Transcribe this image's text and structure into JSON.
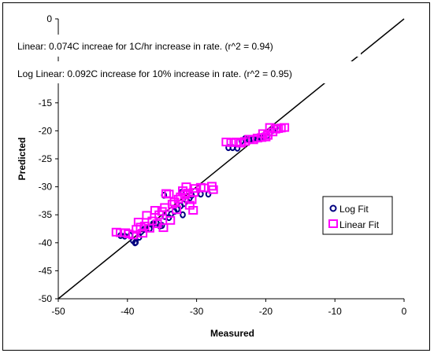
{
  "chart_data": {
    "type": "scatter",
    "xlabel": "Measured",
    "ylabel": "Predicted",
    "xlim": [
      -50,
      0
    ],
    "ylim": [
      -50,
      0
    ],
    "xticks": [
      -50,
      -40,
      -30,
      -20,
      -10,
      0
    ],
    "yticks": [
      0,
      -5,
      -10,
      -15,
      -20,
      -25,
      -30,
      -35,
      -40,
      -45,
      -50
    ],
    "grid": false,
    "legend_position": "right",
    "annotations": [
      "Linear:  0.074C increae for 1C/hr increase in rate. (r^2 = 0.94)",
      "Log Linear:  0.092C increase for 10% increase in rate. (r^2 = 0.95)"
    ],
    "reference_line": {
      "x": [
        -50,
        0
      ],
      "y": [
        -50,
        0
      ],
      "color": "#000000"
    },
    "series": [
      {
        "name": "Log Fit",
        "marker": "circle",
        "color": "#000080",
        "points": [
          [
            -41.0,
            -38.7
          ],
          [
            -40.4,
            -38.8
          ],
          [
            -39.6,
            -38.7
          ],
          [
            -39.2,
            -39.6
          ],
          [
            -38.9,
            -40.0
          ],
          [
            -38.8,
            -39.9
          ],
          [
            -38.3,
            -39.0
          ],
          [
            -38.0,
            -38.0
          ],
          [
            -37.6,
            -37.6
          ],
          [
            -37.3,
            -37.3
          ],
          [
            -36.8,
            -37.5
          ],
          [
            -36.3,
            -36.6
          ],
          [
            -35.8,
            -36.4
          ],
          [
            -35.3,
            -37.0
          ],
          [
            -35.0,
            -36.9
          ],
          [
            -34.6,
            -35.3
          ],
          [
            -34.0,
            -35.5
          ],
          [
            -33.7,
            -34.9
          ],
          [
            -33.2,
            -34.4
          ],
          [
            -32.8,
            -34.0
          ],
          [
            -32.3,
            -33.4
          ],
          [
            -31.8,
            -33.0
          ],
          [
            -31.4,
            -32.5
          ],
          [
            -31.0,
            -32.0
          ],
          [
            -30.7,
            -31.5
          ],
          [
            -34.7,
            -31.5
          ],
          [
            -32.2,
            -31.0
          ],
          [
            -29.4,
            -31.3
          ],
          [
            -28.3,
            -31.3
          ],
          [
            -32.0,
            -35.0
          ],
          [
            -25.4,
            -23.0
          ],
          [
            -24.8,
            -23.0
          ],
          [
            -24.1,
            -23.1
          ],
          [
            -23.5,
            -21.8
          ],
          [
            -23.0,
            -21.4
          ],
          [
            -22.4,
            -21.6
          ],
          [
            -21.8,
            -21.4
          ],
          [
            -21.2,
            -21.5
          ],
          [
            -20.7,
            -21.3
          ],
          [
            -20.2,
            -21.0
          ],
          [
            -19.8,
            -20.9
          ],
          [
            -19.4,
            -20.4
          ],
          [
            -19.0,
            -19.9
          ],
          [
            -18.6,
            -19.5
          ]
        ]
      },
      {
        "name": "Linear Fit",
        "marker": "square",
        "color": "#ff00ff",
        "points": [
          [
            -41.6,
            -38.1
          ],
          [
            -41.0,
            -38.2
          ],
          [
            -40.3,
            -38.2
          ],
          [
            -39.8,
            -38.4
          ],
          [
            -39.2,
            -38.6
          ],
          [
            -38.7,
            -37.6
          ],
          [
            -38.4,
            -36.3
          ],
          [
            -38.1,
            -37.2
          ],
          [
            -37.8,
            -38.3
          ],
          [
            -37.5,
            -37.0
          ],
          [
            -37.2,
            -35.1
          ],
          [
            -36.8,
            -37.4
          ],
          [
            -36.4,
            -36.1
          ],
          [
            -36.0,
            -34.2
          ],
          [
            -35.7,
            -36.6
          ],
          [
            -35.4,
            -35.0
          ],
          [
            -35.0,
            -34.4
          ],
          [
            -34.8,
            -37.3
          ],
          [
            -34.6,
            -33.7
          ],
          [
            -34.4,
            -31.2
          ],
          [
            -34.0,
            -31.3
          ],
          [
            -33.8,
            -36.0
          ],
          [
            -33.5,
            -33.1
          ],
          [
            -33.2,
            -32.7
          ],
          [
            -32.9,
            -34.1
          ],
          [
            -32.6,
            -32.2
          ],
          [
            -32.3,
            -31.8
          ],
          [
            -32.0,
            -30.7
          ],
          [
            -31.7,
            -31.4
          ],
          [
            -31.5,
            -30.0
          ],
          [
            -31.2,
            -31.1
          ],
          [
            -31.0,
            -33.3
          ],
          [
            -30.7,
            -32.3
          ],
          [
            -30.4,
            -31.0
          ],
          [
            -30.2,
            -30.3
          ],
          [
            -29.4,
            -30.1
          ],
          [
            -28.9,
            -30.2
          ],
          [
            -27.8,
            -29.9
          ],
          [
            -27.6,
            -30.5
          ],
          [
            -30.5,
            -34.2
          ],
          [
            -25.7,
            -22.0
          ],
          [
            -25.0,
            -22.1
          ],
          [
            -24.3,
            -22.0
          ],
          [
            -23.6,
            -22.2
          ],
          [
            -23.0,
            -21.9
          ],
          [
            -22.4,
            -21.5
          ],
          [
            -21.8,
            -21.6
          ],
          [
            -21.2,
            -21.3
          ],
          [
            -20.6,
            -21.2
          ],
          [
            -20.0,
            -21.1
          ],
          [
            -19.7,
            -20.8
          ],
          [
            -19.4,
            -19.4
          ],
          [
            -19.0,
            -20.2
          ],
          [
            -18.6,
            -19.7
          ],
          [
            -18.2,
            -19.6
          ],
          [
            -17.8,
            -19.5
          ],
          [
            -17.3,
            -19.4
          ],
          [
            -20.4,
            -20.5
          ]
        ]
      }
    ]
  }
}
